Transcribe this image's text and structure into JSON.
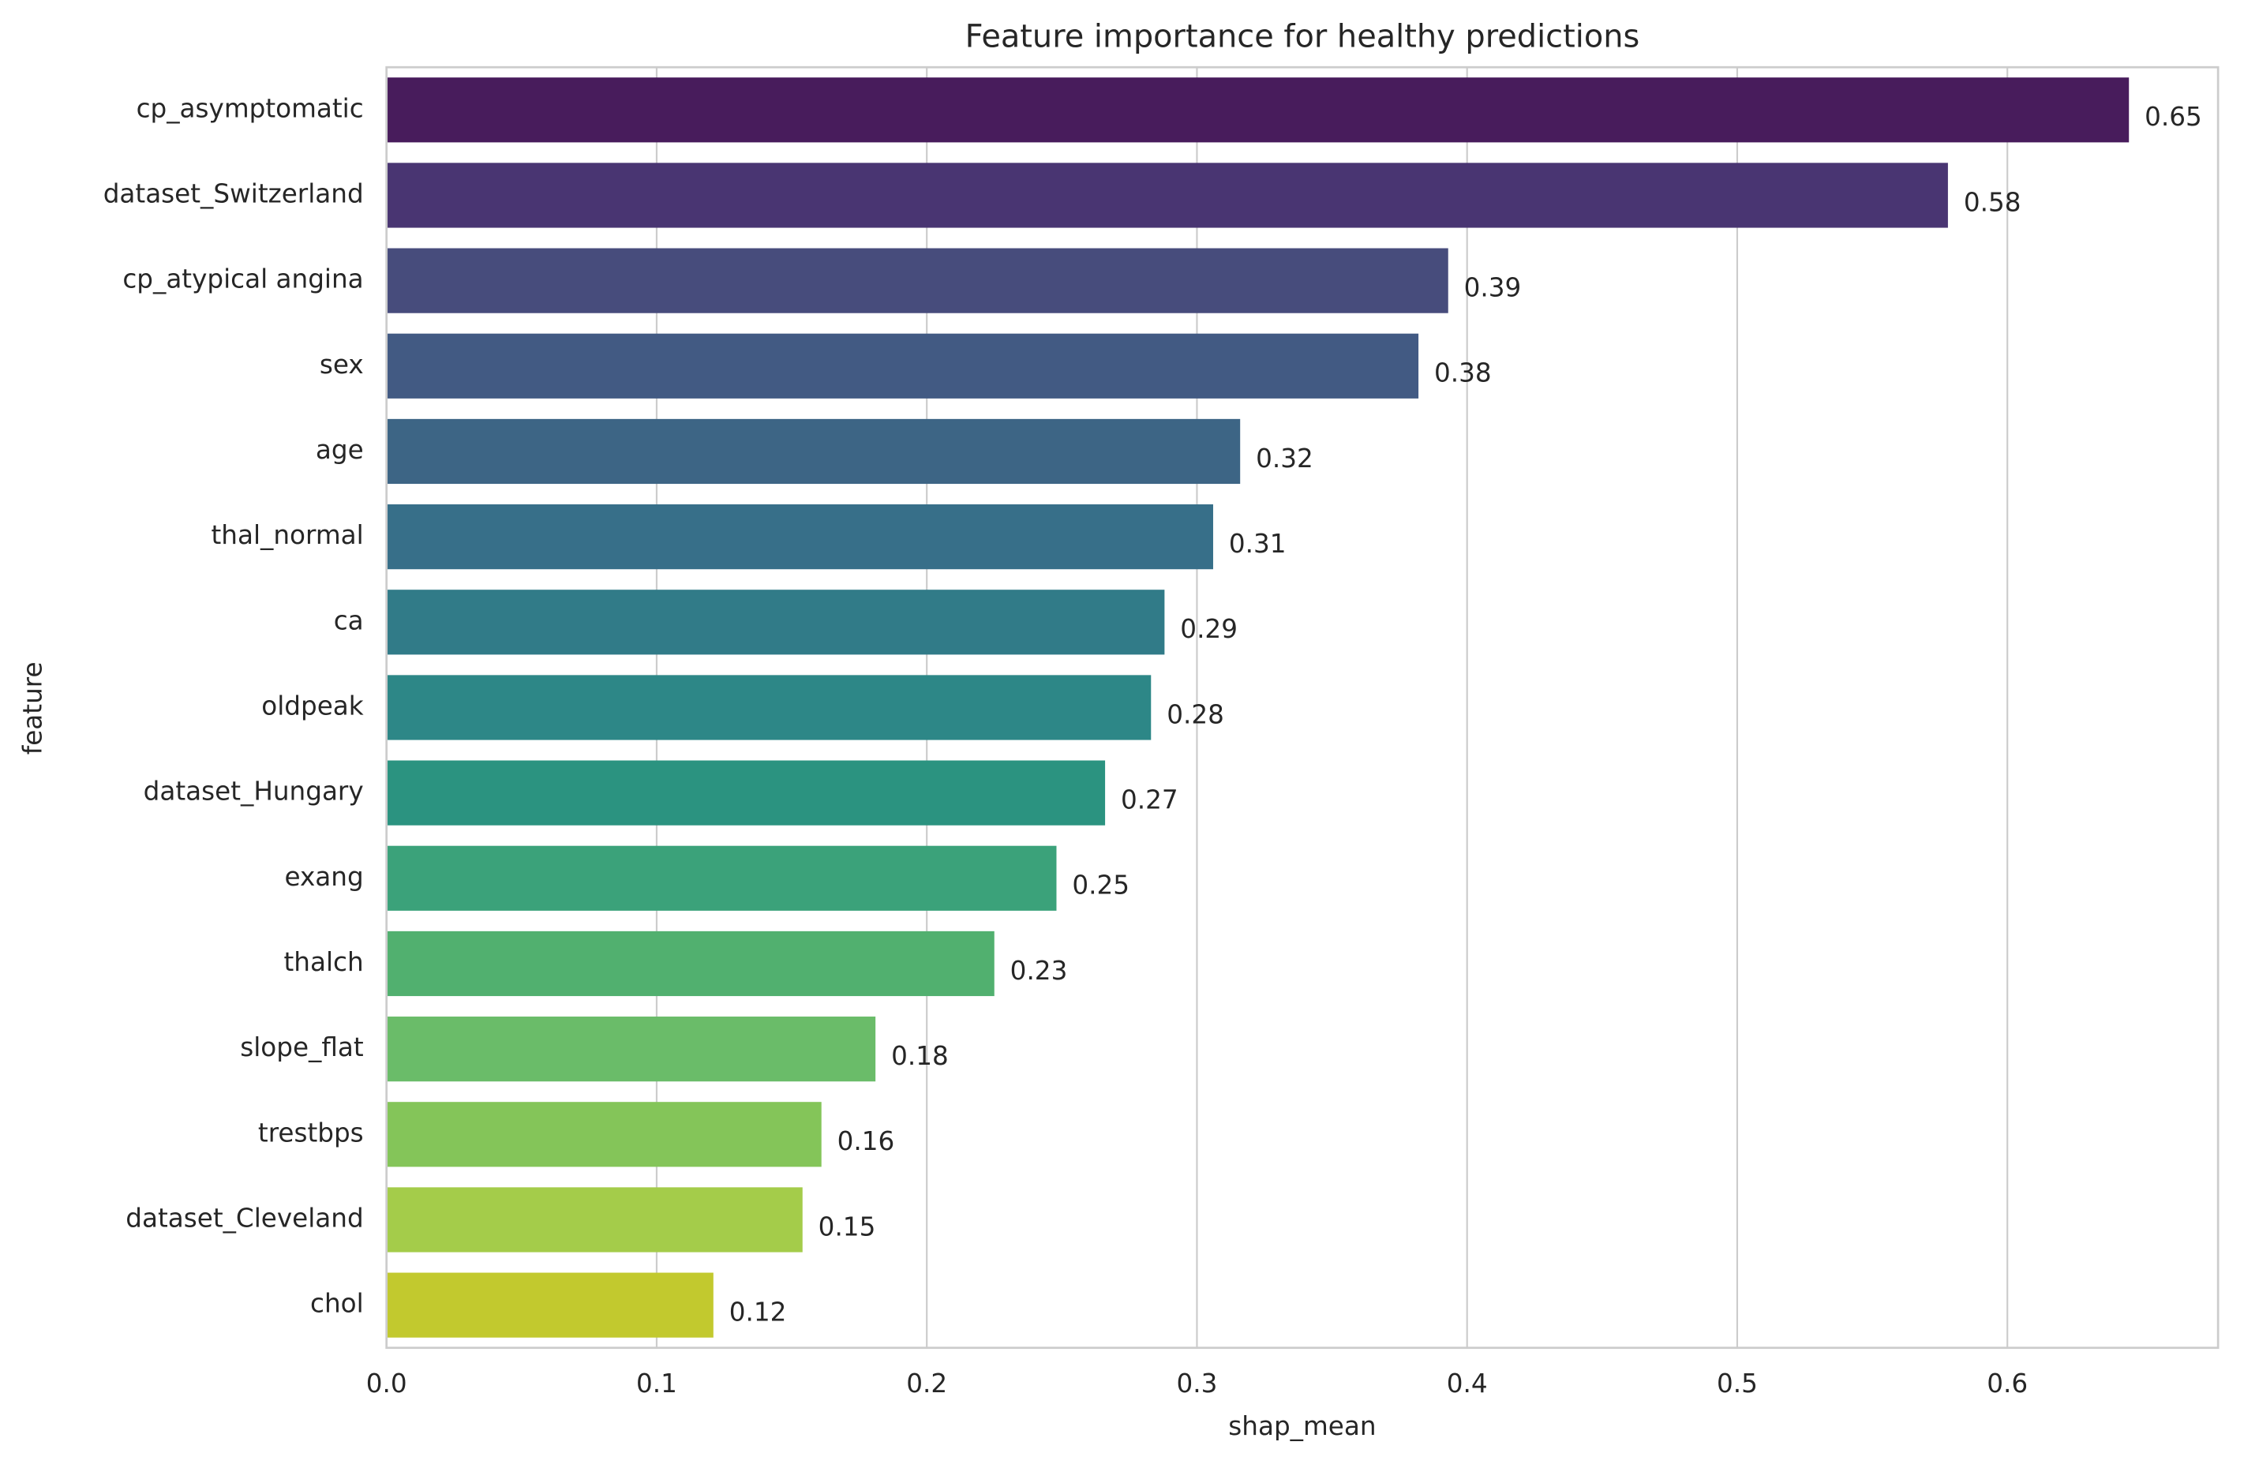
{
  "chart_data": {
    "type": "barh",
    "title": "Feature importance for healthy predictions",
    "x_label": "shap_mean",
    "y_label": "feature",
    "categories": [
      "cp_asymptomatic",
      "dataset_Switzerland",
      "cp_atypical angina",
      "sex",
      "age",
      "thal_normal",
      "ca",
      "oldpeak",
      "dataset_Hungary",
      "exang",
      "thalch",
      "slope_flat",
      "trestbps",
      "dataset_Cleveland",
      "chol"
    ],
    "values": [
      0.645,
      0.578,
      0.393,
      0.382,
      0.316,
      0.306,
      0.288,
      0.283,
      0.266,
      0.248,
      0.225,
      0.181,
      0.161,
      0.154,
      0.121
    ],
    "value_labels": [
      "0.65",
      "0.58",
      "0.39",
      "0.38",
      "0.32",
      "0.31",
      "0.29",
      "0.28",
      "0.27",
      "0.25",
      "0.23",
      "0.18",
      "0.16",
      "0.15",
      "0.12"
    ],
    "colors": [
      "#481c5c",
      "#493572",
      "#474c7c",
      "#425a83",
      "#3d6585",
      "#376f89",
      "#317b88",
      "#2d8787",
      "#2b9380",
      "#3ba27a",
      "#51b06f",
      "#6abc69",
      "#84c559",
      "#a4cc4a",
      "#c2c92e"
    ],
    "xlim": [
      0,
      0.678
    ],
    "xticks": [
      {
        "value": 0,
        "label": "0.0"
      },
      0.1,
      0.2,
      0.3,
      0.4,
      0.5,
      0.6
    ],
    "grid": true
  }
}
